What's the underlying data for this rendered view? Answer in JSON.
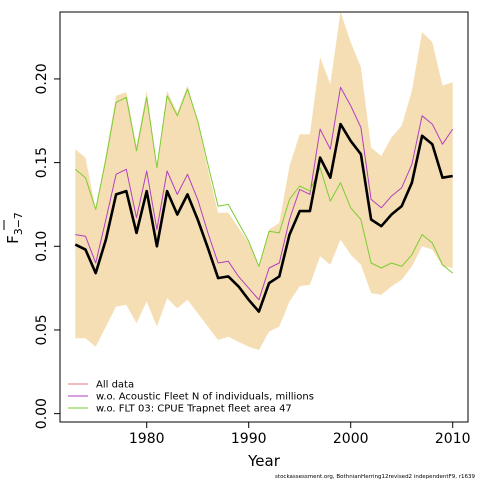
{
  "chart_data": {
    "type": "line",
    "xlabel": "Year",
    "ylabel_main": "F",
    "ylabel_sub": "3−7",
    "xlim": [
      1971.5,
      2011.5
    ],
    "ylim": [
      -0.005,
      0.24
    ],
    "xticks": [
      1980,
      1990,
      2000,
      2010
    ],
    "yticks": [
      0.0,
      0.05,
      0.1,
      0.15,
      0.2
    ],
    "ytick_labels": [
      "0.00",
      "0.05",
      "0.10",
      "0.15",
      "0.20"
    ],
    "grid": false,
    "legend_position": "bottom-left",
    "x": [
      1973,
      1974,
      1975,
      1976,
      1977,
      1978,
      1979,
      1980,
      1981,
      1982,
      1983,
      1984,
      1985,
      1986,
      1987,
      1988,
      1989,
      1990,
      1991,
      1992,
      1993,
      1994,
      1995,
      1996,
      1997,
      1998,
      1999,
      2000,
      2001,
      2002,
      2003,
      2004,
      2005,
      2006,
      2007,
      2008,
      2009,
      2010
    ],
    "band": {
      "name": "All data confidence band",
      "color": "#f5deb3",
      "lower": [
        0.045,
        0.045,
        0.04,
        0.052,
        0.064,
        0.065,
        0.054,
        0.067,
        0.052,
        0.069,
        0.063,
        0.068,
        0.06,
        0.052,
        0.044,
        0.046,
        0.043,
        0.04,
        0.038,
        0.049,
        0.052,
        0.067,
        0.076,
        0.077,
        0.094,
        0.089,
        0.104,
        0.095,
        0.089,
        0.072,
        0.071,
        0.076,
        0.08,
        0.088,
        0.1,
        0.098,
        0.088,
        0.087
      ],
      "upper": [
        0.158,
        0.153,
        0.122,
        0.155,
        0.19,
        0.192,
        0.16,
        0.193,
        0.148,
        0.193,
        0.18,
        0.196,
        0.175,
        0.146,
        0.12,
        0.12,
        0.111,
        0.102,
        0.088,
        0.11,
        0.114,
        0.148,
        0.167,
        0.167,
        0.213,
        0.197,
        0.24,
        0.222,
        0.207,
        0.159,
        0.154,
        0.165,
        0.172,
        0.193,
        0.228,
        0.222,
        0.196,
        0.198
      ]
    },
    "series": [
      {
        "name": "All data",
        "color": "#000000",
        "values": [
          0.101,
          0.098,
          0.084,
          0.104,
          0.131,
          0.133,
          0.108,
          0.133,
          0.1,
          0.133,
          0.119,
          0.131,
          0.116,
          0.099,
          0.081,
          0.082,
          0.076,
          0.068,
          0.061,
          0.078,
          0.082,
          0.107,
          0.121,
          0.121,
          0.153,
          0.141,
          0.173,
          0.163,
          0.155,
          0.116,
          0.112,
          0.119,
          0.124,
          0.138,
          0.166,
          0.161,
          0.141,
          0.142
        ]
      },
      {
        "name": "w.o. Acoustic Fleet  N of individuals, millions",
        "color": "#b040c0",
        "values": [
          0.107,
          0.106,
          0.09,
          0.116,
          0.143,
          0.146,
          0.117,
          0.145,
          0.11,
          0.145,
          0.131,
          0.143,
          0.128,
          0.108,
          0.09,
          0.091,
          0.082,
          0.075,
          0.068,
          0.087,
          0.09,
          0.116,
          0.134,
          0.131,
          0.17,
          0.158,
          0.195,
          0.184,
          0.171,
          0.128,
          0.123,
          0.13,
          0.135,
          0.149,
          0.178,
          0.173,
          0.161,
          0.17
        ]
      },
      {
        "name": "w.o. FLT 03: CPUE Trapnet fleet area 47",
        "color": "#7ccd32",
        "values": [
          0.146,
          0.141,
          0.122,
          0.152,
          0.186,
          0.189,
          0.157,
          0.189,
          0.147,
          0.19,
          0.178,
          0.194,
          0.175,
          0.149,
          0.124,
          0.125,
          0.114,
          0.103,
          0.088,
          0.109,
          0.108,
          0.128,
          0.136,
          0.133,
          0.147,
          0.127,
          0.138,
          0.123,
          0.116,
          0.09,
          0.087,
          0.09,
          0.088,
          0.095,
          0.107,
          0.102,
          0.089,
          0.084
        ]
      }
    ],
    "legend": [
      {
        "label": "All data",
        "color": "#e8737a"
      },
      {
        "label": "w.o. Acoustic Fleet  N of individuals, millions",
        "color": "#b040c0"
      },
      {
        "label": "w.o. FLT 03: CPUE Trapnet fleet area 47",
        "color": "#7ccd32"
      }
    ],
    "credit": "stockassessment.org, BothnianHerring12revised2 independentF9, r1639"
  }
}
